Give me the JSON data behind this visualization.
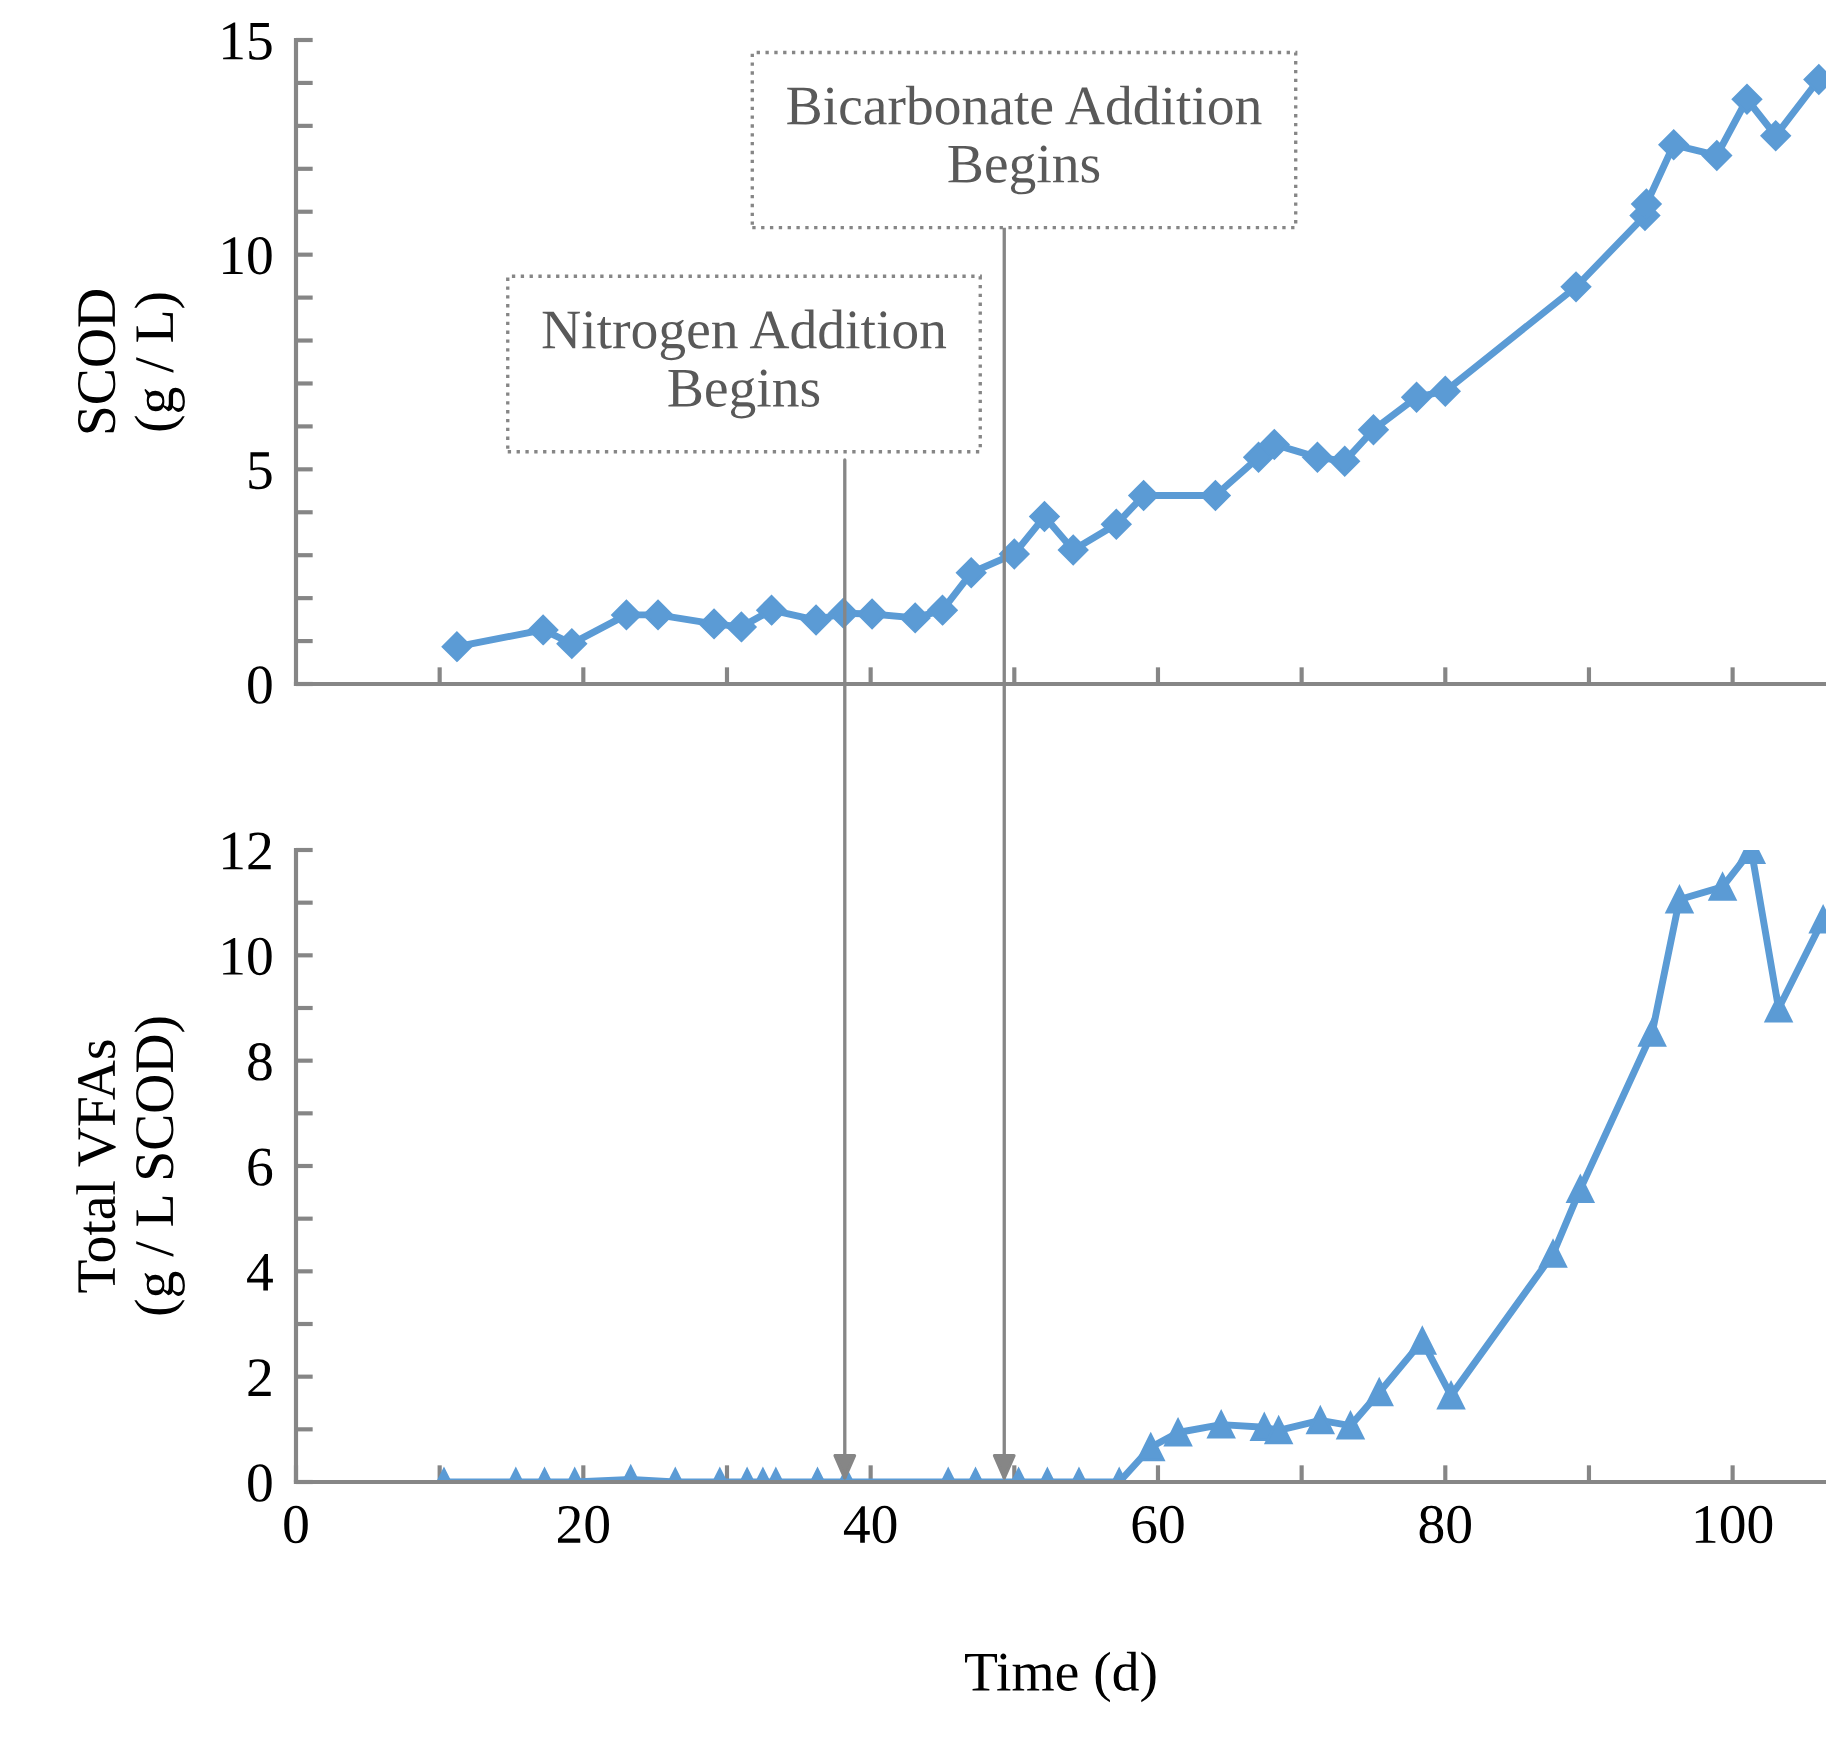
{
  "chart_data": [
    {
      "type": "line",
      "ylabel": "SCOD\n(g / L)",
      "xlim": [
        0,
        106.5
      ],
      "ylim": [
        0,
        15
      ],
      "xticks": [
        {
          "value": 10,
          "label": null
        },
        {
          "value": 20,
          "label": null
        },
        {
          "value": 30,
          "label": null
        },
        {
          "value": 40,
          "label": null
        },
        {
          "value": 50,
          "label": null
        },
        {
          "value": 60,
          "label": null
        },
        {
          "value": 70,
          "label": null
        },
        {
          "value": 80,
          "label": null
        },
        {
          "value": 90,
          "label": null
        },
        {
          "value": 100,
          "label": null
        }
      ],
      "yticks": [
        0,
        {
          "value": 1,
          "label": null
        },
        {
          "value": 2,
          "label": null
        },
        {
          "value": 3,
          "label": null
        },
        {
          "value": 4,
          "label": null
        },
        5,
        {
          "value": 6,
          "label": null
        },
        {
          "value": 7,
          "label": null
        },
        {
          "value": 8,
          "label": null
        },
        {
          "value": 9,
          "label": null
        },
        10,
        {
          "value": 11,
          "label": null
        },
        {
          "value": 12,
          "label": null
        },
        {
          "value": 13,
          "label": null
        },
        {
          "value": 14,
          "label": null
        },
        15
      ],
      "tick_labels": "y",
      "grid": false,
      "marker": "diamond",
      "line_style": "solid",
      "x": [
        11.2,
        17.2,
        19.2,
        23.0,
        25.2,
        29.1,
        31.0,
        33.1,
        36.2,
        38.1,
        40.1,
        43.1,
        45.0,
        47.0,
        50.0,
        52.1,
        54.1,
        57.1,
        59.0,
        64.0,
        67.0,
        68.1,
        71.1,
        73.0,
        75.0,
        78.0,
        80.0,
        89.1,
        93.9,
        94.0,
        95.9,
        98.9,
        101.0,
        103.0,
        106.0
      ],
      "series": [
        {
          "color": "#5b9bd5",
          "values": [
            0.87,
            1.26,
            0.94,
            1.61,
            1.61,
            1.4,
            1.33,
            1.72,
            1.49,
            1.65,
            1.63,
            1.54,
            1.72,
            2.59,
            3.03,
            3.9,
            3.12,
            3.72,
            4.39,
            4.39,
            5.28,
            5.58,
            5.28,
            5.19,
            5.92,
            6.68,
            6.82,
            9.25,
            10.91,
            11.18,
            12.56,
            12.31,
            13.62,
            12.77,
            14.08
          ]
        }
      ]
    },
    {
      "type": "line",
      "xlabel": "Time (d)",
      "ylabel": "Total VFAs\n(g / L SCOD)",
      "xlim": [
        0,
        106.5
      ],
      "ylim": [
        0,
        12
      ],
      "xticks": [
        0,
        {
          "value": 10,
          "label": null
        },
        20,
        {
          "value": 30,
          "label": null
        },
        40,
        {
          "value": 50,
          "label": null
        },
        60,
        {
          "value": 70,
          "label": null
        },
        80,
        {
          "value": 90,
          "label": null
        },
        100
      ],
      "yticks": [
        0,
        {
          "value": 1,
          "label": null
        },
        2,
        {
          "value": 3,
          "label": null
        },
        4,
        {
          "value": 5,
          "label": null
        },
        6,
        {
          "value": 7,
          "label": null
        },
        8,
        {
          "value": 9,
          "label": null
        },
        10,
        {
          "value": 11,
          "label": null
        },
        12
      ],
      "grid": false,
      "marker": "triangle",
      "line_style": "solid",
      "x": [
        10.3,
        15.3,
        17.3,
        19.4,
        23.3,
        26.4,
        29.5,
        31.4,
        32.5,
        33.4,
        36.3,
        38.3,
        45.4,
        47.3,
        50.3,
        52.3,
        54.5,
        57.3,
        59.5,
        61.4,
        64.4,
        67.4,
        68.4,
        71.3,
        73.4,
        75.4,
        78.4,
        80.4,
        87.5,
        89.4,
        94.4,
        96.3,
        99.3,
        101.3,
        103.2,
        106.3
      ],
      "series": [
        {
          "color": "#5b9bd5",
          "values": [
            0,
            0,
            0,
            0,
            0.05,
            0,
            0,
            0,
            0,
            0,
            0,
            0,
            0,
            0,
            0,
            0,
            0,
            0,
            0.66,
            0.94,
            1.09,
            1.04,
            0.98,
            1.17,
            1.07,
            1.7,
            2.68,
            1.64,
            4.33,
            5.56,
            8.53,
            11.06,
            11.3,
            12.0,
            8.99,
            10.68
          ]
        }
      ],
      "annotations": [
        {
          "text": "Nitrogen Addition\nBegins",
          "x": 38.2,
          "y": 0
        },
        {
          "text": "Bicarbonate Addition\nBegins",
          "x": 49.3,
          "y": 0
        }
      ]
    }
  ]
}
